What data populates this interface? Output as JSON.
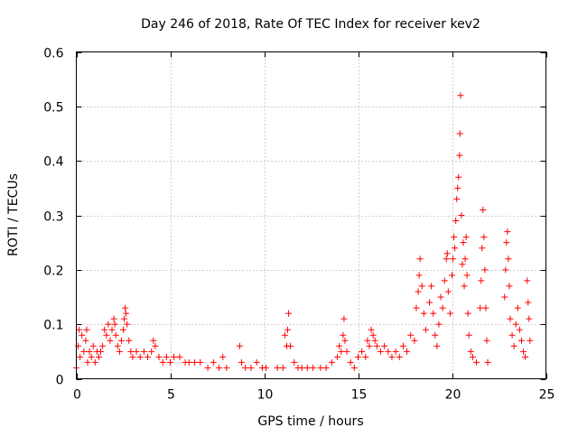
{
  "chart_data": {
    "type": "scatter",
    "title": "Day 246 of 2018, Rate Of TEC Index for receiver kev2",
    "xlabel": "GPS time / hours",
    "ylabel": "ROTI / TECUs",
    "xlim": [
      0,
      25
    ],
    "ylim": [
      0,
      0.6
    ],
    "xticks": [
      0,
      5,
      10,
      15,
      20,
      25
    ],
    "yticks": [
      0,
      0.1,
      0.2,
      0.3,
      0.4,
      0.5,
      0.6
    ],
    "xtick_labels": [
      "0",
      "5",
      "10",
      "15",
      "20",
      "25"
    ],
    "ytick_labels": [
      "0",
      "0.1",
      "0.2",
      "0.3",
      "0.4",
      "0.5",
      "0.6"
    ],
    "grid": true,
    "marker": "+",
    "color": "#ff0000",
    "series": [
      {
        "name": "ROTI",
        "points": [
          [
            0.0,
            0.02
          ],
          [
            0.1,
            0.06
          ],
          [
            0.15,
            0.09
          ],
          [
            0.2,
            0.04
          ],
          [
            0.3,
            0.08
          ],
          [
            0.4,
            0.05
          ],
          [
            0.5,
            0.07
          ],
          [
            0.55,
            0.09
          ],
          [
            0.6,
            0.03
          ],
          [
            0.7,
            0.05
          ],
          [
            0.8,
            0.04
          ],
          [
            0.9,
            0.06
          ],
          [
            1.0,
            0.03
          ],
          [
            1.1,
            0.05
          ],
          [
            1.2,
            0.04
          ],
          [
            1.3,
            0.05
          ],
          [
            1.4,
            0.06
          ],
          [
            1.5,
            0.09
          ],
          [
            1.6,
            0.08
          ],
          [
            1.7,
            0.1
          ],
          [
            1.8,
            0.07
          ],
          [
            1.9,
            0.09
          ],
          [
            2.0,
            0.11
          ],
          [
            2.05,
            0.1
          ],
          [
            2.1,
            0.08
          ],
          [
            2.2,
            0.06
          ],
          [
            2.3,
            0.05
          ],
          [
            2.4,
            0.07
          ],
          [
            2.5,
            0.09
          ],
          [
            2.55,
            0.11
          ],
          [
            2.6,
            0.13
          ],
          [
            2.65,
            0.12
          ],
          [
            2.7,
            0.1
          ],
          [
            2.8,
            0.07
          ],
          [
            2.9,
            0.05
          ],
          [
            3.0,
            0.04
          ],
          [
            3.2,
            0.05
          ],
          [
            3.4,
            0.04
          ],
          [
            3.6,
            0.05
          ],
          [
            3.8,
            0.04
          ],
          [
            4.0,
            0.05
          ],
          [
            4.1,
            0.07
          ],
          [
            4.2,
            0.06
          ],
          [
            4.4,
            0.04
          ],
          [
            4.6,
            0.03
          ],
          [
            4.8,
            0.04
          ],
          [
            5.0,
            0.03
          ],
          [
            5.2,
            0.04
          ],
          [
            5.5,
            0.04
          ],
          [
            5.8,
            0.03
          ],
          [
            6.0,
            0.03
          ],
          [
            6.3,
            0.03
          ],
          [
            6.6,
            0.03
          ],
          [
            7.0,
            0.02
          ],
          [
            7.3,
            0.03
          ],
          [
            7.6,
            0.02
          ],
          [
            7.8,
            0.04
          ],
          [
            8.0,
            0.02
          ],
          [
            8.7,
            0.06
          ],
          [
            8.8,
            0.03
          ],
          [
            9.0,
            0.02
          ],
          [
            9.3,
            0.02
          ],
          [
            9.6,
            0.03
          ],
          [
            9.9,
            0.02
          ],
          [
            10.1,
            0.02
          ],
          [
            10.7,
            0.02
          ],
          [
            11.0,
            0.02
          ],
          [
            11.1,
            0.08
          ],
          [
            11.2,
            0.06
          ],
          [
            11.25,
            0.09
          ],
          [
            11.3,
            0.12
          ],
          [
            11.4,
            0.06
          ],
          [
            11.6,
            0.03
          ],
          [
            11.8,
            0.02
          ],
          [
            12.0,
            0.02
          ],
          [
            12.3,
            0.02
          ],
          [
            12.6,
            0.02
          ],
          [
            13.0,
            0.02
          ],
          [
            13.3,
            0.02
          ],
          [
            13.6,
            0.03
          ],
          [
            13.9,
            0.04
          ],
          [
            14.0,
            0.06
          ],
          [
            14.1,
            0.05
          ],
          [
            14.2,
            0.08
          ],
          [
            14.25,
            0.11
          ],
          [
            14.3,
            0.07
          ],
          [
            14.4,
            0.05
          ],
          [
            14.6,
            0.03
          ],
          [
            14.8,
            0.02
          ],
          [
            15.0,
            0.04
          ],
          [
            15.2,
            0.05
          ],
          [
            15.4,
            0.04
          ],
          [
            15.5,
            0.07
          ],
          [
            15.6,
            0.06
          ],
          [
            15.7,
            0.09
          ],
          [
            15.8,
            0.08
          ],
          [
            15.9,
            0.07
          ],
          [
            16.0,
            0.06
          ],
          [
            16.2,
            0.05
          ],
          [
            16.4,
            0.06
          ],
          [
            16.6,
            0.05
          ],
          [
            16.8,
            0.04
          ],
          [
            17.0,
            0.05
          ],
          [
            17.2,
            0.04
          ],
          [
            17.4,
            0.06
          ],
          [
            17.6,
            0.05
          ],
          [
            17.8,
            0.08
          ],
          [
            18.0,
            0.07
          ],
          [
            18.1,
            0.13
          ],
          [
            18.2,
            0.16
          ],
          [
            18.25,
            0.19
          ],
          [
            18.3,
            0.22
          ],
          [
            18.4,
            0.17
          ],
          [
            18.5,
            0.12
          ],
          [
            18.6,
            0.09
          ],
          [
            18.8,
            0.14
          ],
          [
            18.9,
            0.17
          ],
          [
            19.0,
            0.12
          ],
          [
            19.1,
            0.08
          ],
          [
            19.2,
            0.06
          ],
          [
            19.3,
            0.1
          ],
          [
            19.4,
            0.15
          ],
          [
            19.5,
            0.13
          ],
          [
            19.6,
            0.18
          ],
          [
            19.7,
            0.22
          ],
          [
            19.75,
            0.23
          ],
          [
            19.8,
            0.16
          ],
          [
            19.9,
            0.12
          ],
          [
            20.0,
            0.19
          ],
          [
            20.05,
            0.22
          ],
          [
            20.1,
            0.26
          ],
          [
            20.15,
            0.24
          ],
          [
            20.2,
            0.29
          ],
          [
            20.25,
            0.33
          ],
          [
            20.3,
            0.35
          ],
          [
            20.35,
            0.37
          ],
          [
            20.4,
            0.41
          ],
          [
            20.42,
            0.45
          ],
          [
            20.45,
            0.52
          ],
          [
            20.5,
            0.3
          ],
          [
            20.55,
            0.21
          ],
          [
            20.6,
            0.25
          ],
          [
            20.65,
            0.17
          ],
          [
            20.7,
            0.22
          ],
          [
            20.75,
            0.26
          ],
          [
            20.8,
            0.19
          ],
          [
            20.85,
            0.12
          ],
          [
            20.9,
            0.08
          ],
          [
            21.0,
            0.05
          ],
          [
            21.1,
            0.04
          ],
          [
            21.3,
            0.03
          ],
          [
            21.5,
            0.13
          ],
          [
            21.55,
            0.18
          ],
          [
            21.6,
            0.24
          ],
          [
            21.65,
            0.31
          ],
          [
            21.7,
            0.26
          ],
          [
            21.75,
            0.2
          ],
          [
            21.8,
            0.13
          ],
          [
            21.85,
            0.07
          ],
          [
            21.9,
            0.03
          ],
          [
            22.8,
            0.15
          ],
          [
            22.85,
            0.2
          ],
          [
            22.9,
            0.25
          ],
          [
            22.95,
            0.27
          ],
          [
            23.0,
            0.22
          ],
          [
            23.05,
            0.17
          ],
          [
            23.1,
            0.11
          ],
          [
            23.2,
            0.08
          ],
          [
            23.3,
            0.06
          ],
          [
            23.4,
            0.1
          ],
          [
            23.5,
            0.13
          ],
          [
            23.6,
            0.09
          ],
          [
            23.7,
            0.07
          ],
          [
            23.8,
            0.05
          ],
          [
            23.9,
            0.04
          ],
          [
            24.0,
            0.18
          ],
          [
            24.05,
            0.14
          ],
          [
            24.1,
            0.11
          ],
          [
            24.15,
            0.07
          ]
        ]
      }
    ]
  }
}
